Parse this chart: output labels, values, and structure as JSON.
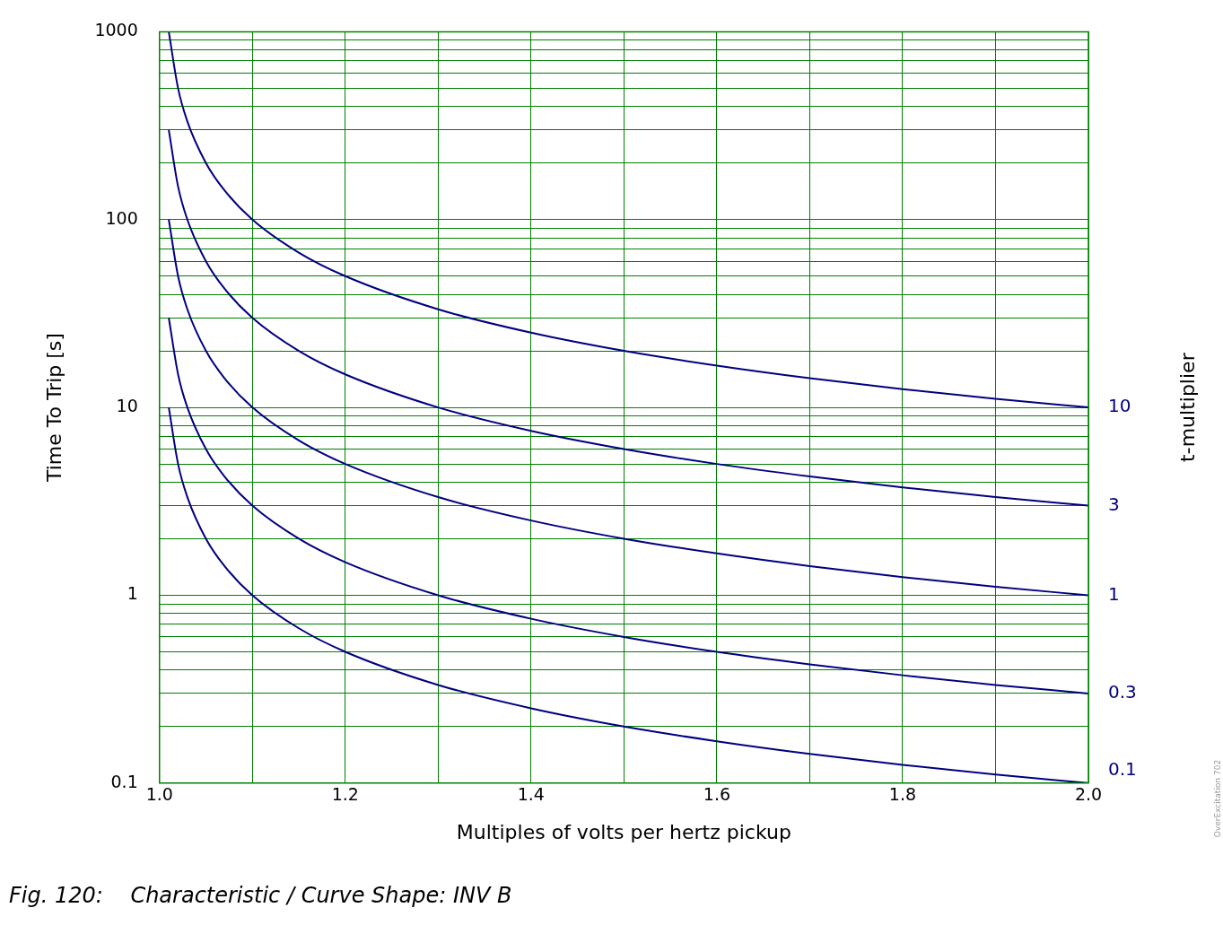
{
  "chart_data": {
    "type": "line",
    "xlabel": "Multiples of volts per hertz pickup",
    "ylabel": "Time To Trip [s]",
    "y2label": "t-multiplier",
    "annotations": [
      "Fig. 120:    Characteristic / Curve Shape: INV B",
      "OverExcitation 702"
    ],
    "x": [
      1.01,
      1.02,
      1.03,
      1.05,
      1.07,
      1.1,
      1.15,
      1.2,
      1.3,
      1.4,
      1.5,
      1.6,
      1.7,
      1.8,
      1.9,
      2.0
    ],
    "series": [
      {
        "name": "10",
        "color": "#000080",
        "values": [
          1000,
          500,
          333,
          200,
          143,
          100,
          66.7,
          50,
          33.3,
          25,
          20,
          16.7,
          14.3,
          12.5,
          11.1,
          10
        ]
      },
      {
        "name": "3",
        "color": "#000080",
        "values": [
          300,
          150,
          100,
          60,
          42.9,
          30,
          20,
          15,
          10,
          7.5,
          6,
          5,
          4.29,
          3.75,
          3.33,
          3
        ]
      },
      {
        "name": "1",
        "color": "#000080",
        "values": [
          100,
          50,
          33.3,
          20,
          14.3,
          10,
          6.67,
          5,
          3.33,
          2.5,
          2,
          1.67,
          1.43,
          1.25,
          1.11,
          1
        ]
      },
      {
        "name": "0.3",
        "color": "#000080",
        "values": [
          30,
          15,
          10,
          6,
          4.29,
          3,
          2,
          1.5,
          1,
          0.75,
          0.6,
          0.5,
          0.429,
          0.375,
          0.333,
          0.3
        ]
      },
      {
        "name": "0.1",
        "color": "#000080",
        "values": [
          10,
          5,
          3.33,
          2,
          1.43,
          1,
          0.667,
          0.5,
          0.333,
          0.25,
          0.2,
          0.167,
          0.143,
          0.125,
          0.111,
          0.1
        ]
      }
    ],
    "xlim": [
      1.0,
      2.0
    ],
    "xticks": [
      {
        "value": 1.0,
        "label": "1.0"
      },
      {
        "value": 1.1,
        "label": null
      },
      {
        "value": 1.2,
        "label": "1.2"
      },
      {
        "value": 1.3,
        "label": null
      },
      {
        "value": 1.4,
        "label": "1.4"
      },
      {
        "value": 1.5,
        "label": null
      },
      {
        "value": 1.6,
        "label": "1.6"
      },
      {
        "value": 1.7,
        "label": null
      },
      {
        "value": 1.8,
        "label": "1.8"
      },
      {
        "value": 1.9,
        "label": null
      },
      {
        "value": 2.0,
        "label": "2.0"
      }
    ],
    "ylim": [
      0.1,
      1000
    ],
    "yticks": [
      0.1,
      {
        "value": 0.2,
        "label": null
      },
      {
        "value": 0.3,
        "label": null
      },
      {
        "value": 0.4,
        "label": null
      },
      {
        "value": 0.5,
        "label": null
      },
      {
        "value": 0.6,
        "label": null
      },
      {
        "value": 0.7,
        "label": null
      },
      {
        "value": 0.8,
        "label": null
      },
      {
        "value": 0.9,
        "label": null
      },
      1,
      {
        "value": 2,
        "label": null
      },
      {
        "value": 3,
        "label": null
      },
      {
        "value": 4,
        "label": null
      },
      {
        "value": 5,
        "label": null
      },
      {
        "value": 6,
        "label": null
      },
      {
        "value": 7,
        "label": null
      },
      {
        "value": 8,
        "label": null
      },
      {
        "value": 9,
        "label": null
      },
      10,
      {
        "value": 20,
        "label": null
      },
      {
        "value": 30,
        "label": null
      },
      {
        "value": 40,
        "label": null
      },
      {
        "value": 50,
        "label": null
      },
      {
        "value": 60,
        "label": null
      },
      {
        "value": 70,
        "label": null
      },
      {
        "value": 80,
        "label": null
      },
      {
        "value": 90,
        "label": null
      },
      100,
      {
        "value": 200,
        "label": null
      },
      {
        "value": 300,
        "label": null
      },
      {
        "value": 400,
        "label": null
      },
      {
        "value": 500,
        "label": null
      },
      {
        "value": 600,
        "label": null
      },
      {
        "value": 700,
        "label": null
      },
      {
        "value": 800,
        "label": null
      },
      {
        "value": 900,
        "label": null
      },
      1000
    ],
    "log": "y",
    "grid": true,
    "legend": false,
    "marker": "none",
    "line_style": "solid"
  }
}
